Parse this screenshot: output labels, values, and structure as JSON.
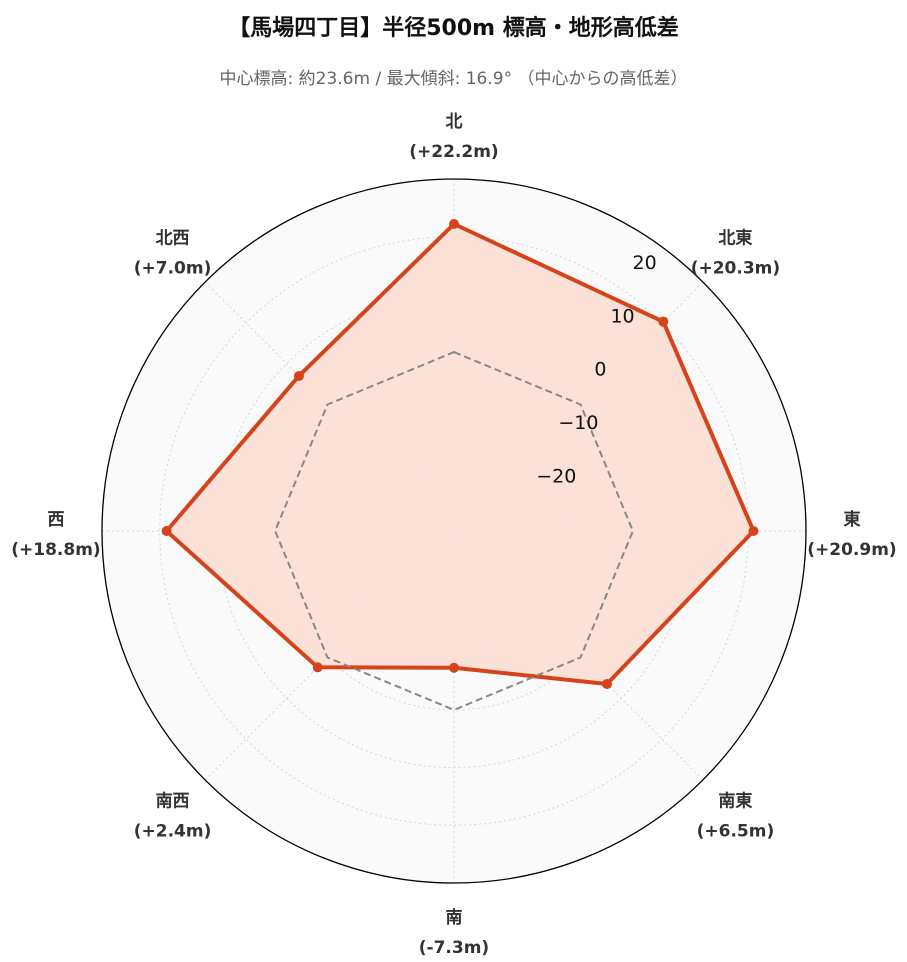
{
  "title": "【馬場四丁目】半径500m 標高・地形高低差",
  "subtitle": "中心標高: 約23.6m / 最大傾斜: 16.9° （中心からの高低差）",
  "chart_data": {
    "type": "radar",
    "title": "【馬場四丁目】半径500m 標高・地形高低差",
    "subtitle": "中心標高: 約23.6m / 最大傾斜: 16.9° （中心からの高低差）",
    "directions": [
      {
        "name": "北",
        "diff_label": "(+22.2m)"
      },
      {
        "name": "北東",
        "diff_label": "(+20.3m)"
      },
      {
        "name": "東",
        "diff_label": "(+20.9m)"
      },
      {
        "name": "南東",
        "diff_label": "(+6.5m)"
      },
      {
        "name": "南",
        "diff_label": "(-7.3m)"
      },
      {
        "name": "南西",
        "diff_label": "(+2.4m)"
      },
      {
        "name": "西",
        "diff_label": "(+18.8m)"
      },
      {
        "name": "北西",
        "diff_label": "(+7.0m)"
      }
    ],
    "series": [
      {
        "values": [
          22.2,
          20.3,
          20.9,
          6.5,
          -7.3,
          2.4,
          18.8,
          7.0
        ],
        "color": "#d4431a",
        "fill": "#fcdfd7"
      },
      {
        "values": [
          0,
          0,
          0,
          0,
          0,
          0,
          0,
          0
        ],
        "color": "#888888",
        "style": "dashed"
      }
    ],
    "radial_ticks": [
      -20,
      -10,
      0,
      10,
      20
    ],
    "rlim": [
      -31,
      30
    ],
    "grid": true,
    "grid_style": "dotted"
  }
}
